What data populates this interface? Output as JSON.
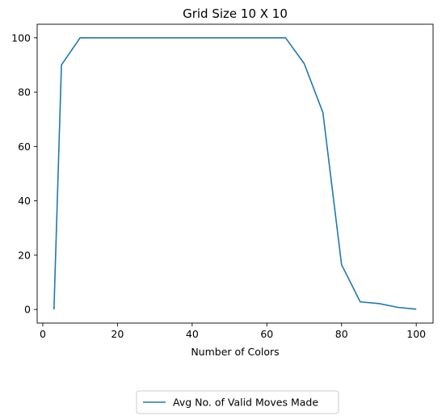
{
  "chart_data": {
    "type": "line",
    "title": "Grid Size 10 X 10",
    "xlabel": "Number of Colors",
    "ylabel": "",
    "xlim": [
      -1.5,
      104.5
    ],
    "ylim": [
      -5,
      105
    ],
    "xticks": [
      0,
      20,
      40,
      60,
      80,
      100
    ],
    "yticks": [
      0,
      20,
      40,
      60,
      80,
      100
    ],
    "grid": false,
    "legend_position": "bottom-center, outside plot",
    "series": [
      {
        "name": "Avg No. of Valid Moves Made",
        "color": "#1f77b4",
        "x": [
          3,
          5,
          10,
          15,
          20,
          25,
          30,
          35,
          40,
          45,
          50,
          55,
          60,
          65,
          70,
          75,
          80,
          85,
          90,
          95,
          100
        ],
        "y": [
          0,
          90,
          100,
          100,
          100,
          100,
          100,
          100,
          100,
          100,
          100,
          100,
          100,
          100,
          90.5,
          72.5,
          16.5,
          2.8,
          2.2,
          0.8,
          0.1
        ]
      }
    ]
  }
}
